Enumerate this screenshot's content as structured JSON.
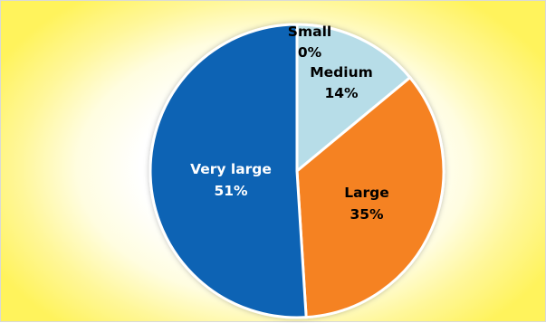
{
  "chart_data": {
    "type": "pie",
    "title": "",
    "start_angle_deg": 0,
    "direction": "clockwise",
    "slices": [
      {
        "name": "Small",
        "value": 0,
        "label": "0%",
        "color": "#d8d8d8",
        "label_color": "#000000"
      },
      {
        "name": "Medium",
        "value": 14,
        "label": "14%",
        "color": "#b7dde8",
        "label_color": "#000000"
      },
      {
        "name": "Large",
        "value": 35,
        "label": "35%",
        "color": "#f58220",
        "label_color": "#000000"
      },
      {
        "name": "Very large",
        "value": 51,
        "label": "51%",
        "color": "#0f64b4",
        "label_color": "#ffffff"
      }
    ],
    "legend": "none",
    "background_color": "#fff35c"
  }
}
